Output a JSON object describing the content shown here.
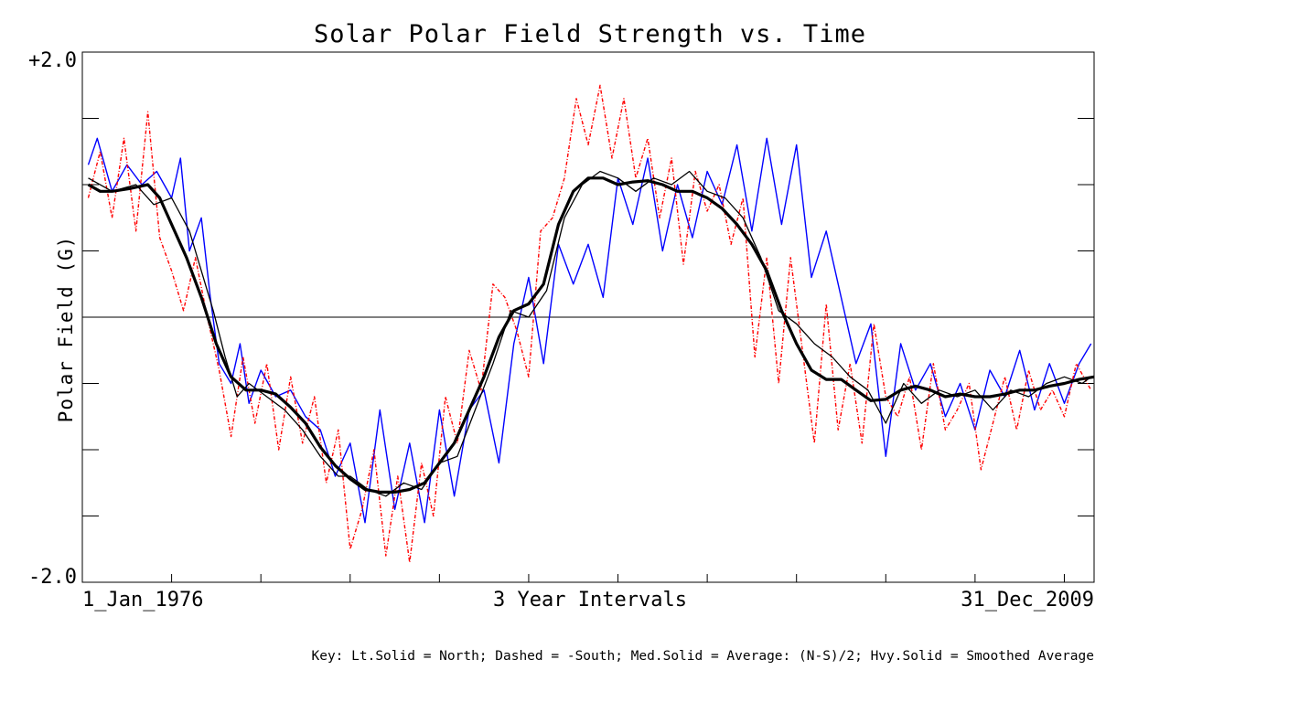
{
  "chart_data": {
    "type": "line",
    "title": "Solar Polar Field Strength vs. Time",
    "ylabel": "Polar Field (G)",
    "xlabel": "3 Year Intervals",
    "x_start_label": "1_Jan_1976",
    "x_end_label": "31_Dec_2009",
    "y_top_label": "+2.0",
    "y_bottom_label": "-2.0",
    "ylim": [
      -2.0,
      2.0
    ],
    "xlim": [
      1976.0,
      2010.0
    ],
    "x_ticks": [
      1979,
      1982,
      1985,
      1988,
      1991,
      1994,
      1997,
      2000,
      2003,
      2006,
      2009
    ],
    "y_ticks": [
      -1.5,
      -1.0,
      -0.5,
      0.0,
      0.5,
      1.0,
      1.5
    ],
    "zero_line": true,
    "key": "Key: Lt.Solid = North; Dashed = -South; Med.Solid = Average: (N-S)/2; Hvy.Solid = Smoothed Average",
    "series": [
      {
        "name": "North",
        "style": "light-solid",
        "color": "#0000ff",
        "x": [
          1976.2,
          1976.5,
          1977.0,
          1977.5,
          1978.0,
          1978.5,
          1979.0,
          1979.3,
          1979.6,
          1980.0,
          1980.3,
          1980.6,
          1981.0,
          1981.3,
          1981.6,
          1982.0,
          1982.5,
          1983.0,
          1983.5,
          1984.0,
          1984.5,
          1985.0,
          1985.5,
          1986.0,
          1986.5,
          1987.0,
          1987.5,
          1988.0,
          1988.5,
          1989.0,
          1989.5,
          1990.0,
          1990.5,
          1991.0,
          1991.5,
          1992.0,
          1992.5,
          1993.0,
          1993.5,
          1994.0,
          1994.5,
          1995.0,
          1995.5,
          1996.0,
          1996.5,
          1997.0,
          1997.5,
          1998.0,
          1998.5,
          1999.0,
          1999.5,
          2000.0,
          2000.5,
          2001.0,
          2001.5,
          2002.0,
          2002.5,
          2003.0,
          2003.5,
          2004.0,
          2004.5,
          2005.0,
          2005.5,
          2006.0,
          2006.5,
          2007.0,
          2007.5,
          2008.0,
          2008.5,
          2009.0,
          2009.5,
          2009.9
        ],
        "y": [
          1.15,
          1.35,
          0.95,
          1.15,
          1.0,
          1.1,
          0.9,
          1.2,
          0.5,
          0.75,
          0.15,
          -0.35,
          -0.5,
          -0.2,
          -0.65,
          -0.4,
          -0.6,
          -0.55,
          -0.75,
          -0.85,
          -1.2,
          -0.95,
          -1.55,
          -0.7,
          -1.45,
          -0.95,
          -1.55,
          -0.7,
          -1.35,
          -0.7,
          -0.55,
          -1.1,
          -0.2,
          0.3,
          -0.35,
          0.55,
          0.25,
          0.55,
          0.15,
          1.05,
          0.7,
          1.2,
          0.5,
          1.0,
          0.6,
          1.1,
          0.85,
          1.3,
          0.65,
          1.35,
          0.7,
          1.3,
          0.3,
          0.65,
          0.15,
          -0.35,
          -0.05,
          -1.05,
          -0.2,
          -0.55,
          -0.35,
          -0.75,
          -0.5,
          -0.85,
          -0.4,
          -0.6,
          -0.25,
          -0.7,
          -0.35,
          -0.65,
          -0.35,
          -0.2
        ]
      },
      {
        "name": "-South",
        "style": "dashed",
        "color": "#ff0000",
        "x": [
          1976.2,
          1976.6,
          1977.0,
          1977.4,
          1977.8,
          1978.2,
          1978.6,
          1979.0,
          1979.4,
          1979.8,
          1980.2,
          1980.6,
          1981.0,
          1981.4,
          1981.8,
          1982.2,
          1982.6,
          1983.0,
          1983.4,
          1983.8,
          1984.2,
          1984.6,
          1985.0,
          1985.4,
          1985.8,
          1986.2,
          1986.6,
          1987.0,
          1987.4,
          1987.8,
          1988.2,
          1988.6,
          1989.0,
          1989.4,
          1989.8,
          1990.2,
          1990.6,
          1991.0,
          1991.4,
          1991.8,
          1992.2,
          1992.6,
          1993.0,
          1993.4,
          1993.8,
          1994.2,
          1994.6,
          1995.0,
          1995.4,
          1995.8,
          1996.2,
          1996.6,
          1997.0,
          1997.4,
          1997.8,
          1998.2,
          1998.6,
          1999.0,
          1999.4,
          1999.8,
          2000.2,
          2000.6,
          2001.0,
          2001.4,
          2001.8,
          2002.2,
          2002.6,
          2003.0,
          2003.4,
          2003.8,
          2004.2,
          2004.6,
          2005.0,
          2005.4,
          2005.8,
          2006.2,
          2006.6,
          2007.0,
          2007.4,
          2007.8,
          2008.2,
          2008.6,
          2009.0,
          2009.4,
          2009.9
        ],
        "y": [
          0.9,
          1.25,
          0.75,
          1.35,
          0.65,
          1.55,
          0.6,
          0.35,
          0.05,
          0.45,
          0.0,
          -0.4,
          -0.9,
          -0.3,
          -0.8,
          -0.35,
          -1.0,
          -0.45,
          -0.95,
          -0.6,
          -1.25,
          -0.85,
          -1.75,
          -1.45,
          -1.0,
          -1.8,
          -1.2,
          -1.85,
          -1.1,
          -1.5,
          -0.6,
          -0.95,
          -0.25,
          -0.55,
          0.25,
          0.15,
          -0.1,
          -0.45,
          0.65,
          0.75,
          1.05,
          1.65,
          1.3,
          1.75,
          1.2,
          1.65,
          1.05,
          1.35,
          0.75,
          1.2,
          0.4,
          1.1,
          0.8,
          1.0,
          0.55,
          0.9,
          -0.3,
          0.45,
          -0.5,
          0.45,
          -0.25,
          -0.95,
          0.1,
          -0.85,
          -0.35,
          -0.95,
          -0.05,
          -0.6,
          -0.75,
          -0.45,
          -1.0,
          -0.35,
          -0.85,
          -0.7,
          -0.5,
          -1.15,
          -0.8,
          -0.45,
          -0.85,
          -0.4,
          -0.7,
          -0.55,
          -0.75,
          -0.35,
          -0.55
        ]
      },
      {
        "name": "Average: (N-S)/2",
        "style": "medium-solid",
        "color": "#000000",
        "x": [
          1976.2,
          1977.0,
          1977.8,
          1978.4,
          1979.0,
          1979.6,
          1980.0,
          1980.4,
          1980.8,
          1981.2,
          1981.6,
          1982.2,
          1982.8,
          1983.4,
          1984.0,
          1984.6,
          1985.0,
          1985.6,
          1986.2,
          1986.8,
          1987.4,
          1988.0,
          1988.6,
          1989.2,
          1989.8,
          1990.4,
          1991.0,
          1991.6,
          1992.2,
          1992.8,
          1993.4,
          1994.0,
          1994.6,
          1995.2,
          1995.8,
          1996.4,
          1997.0,
          1997.6,
          1998.2,
          1998.8,
          1999.4,
          2000.0,
          2000.6,
          2001.2,
          2001.8,
          2002.4,
          2003.0,
          2003.6,
          2004.2,
          2004.8,
          2005.4,
          2006.0,
          2006.6,
          2007.2,
          2007.8,
          2008.4,
          2009.0,
          2009.6,
          2009.9
        ],
        "y": [
          1.05,
          0.95,
          1.0,
          0.85,
          0.9,
          0.65,
          0.35,
          0.05,
          -0.3,
          -0.6,
          -0.5,
          -0.6,
          -0.7,
          -0.85,
          -1.05,
          -1.2,
          -1.2,
          -1.3,
          -1.35,
          -1.25,
          -1.3,
          -1.1,
          -1.05,
          -0.7,
          -0.35,
          0.05,
          0.0,
          0.2,
          0.75,
          1.0,
          1.1,
          1.05,
          0.95,
          1.05,
          1.0,
          1.1,
          0.95,
          0.9,
          0.75,
          0.45,
          0.05,
          -0.05,
          -0.2,
          -0.3,
          -0.45,
          -0.55,
          -0.8,
          -0.5,
          -0.65,
          -0.55,
          -0.6,
          -0.55,
          -0.7,
          -0.55,
          -0.6,
          -0.5,
          -0.45,
          -0.5,
          -0.45
        ]
      },
      {
        "name": "Smoothed Average",
        "style": "heavy-solid",
        "color": "#000000",
        "x": [
          1976.2,
          1976.6,
          1977.0,
          1977.6,
          1978.2,
          1978.6,
          1979.0,
          1979.5,
          1980.0,
          1980.5,
          1981.0,
          1981.5,
          1982.0,
          1982.5,
          1983.0,
          1983.5,
          1984.0,
          1984.5,
          1985.0,
          1985.5,
          1986.0,
          1986.5,
          1987.0,
          1987.5,
          1988.0,
          1988.5,
          1989.0,
          1989.5,
          1990.0,
          1990.5,
          1991.0,
          1991.5,
          1992.0,
          1992.5,
          1993.0,
          1993.5,
          1994.0,
          1994.5,
          1995.0,
          1995.5,
          1996.0,
          1996.5,
          1997.0,
          1997.5,
          1998.0,
          1998.5,
          1999.0,
          1999.5,
          2000.0,
          2000.5,
          2001.0,
          2001.5,
          2002.0,
          2002.5,
          2003.0,
          2003.5,
          2004.0,
          2004.5,
          2005.0,
          2005.5,
          2006.0,
          2006.5,
          2007.0,
          2007.5,
          2008.0,
          2008.5,
          2009.0,
          2009.5,
          2010.0
        ],
        "y": [
          1.0,
          0.95,
          0.95,
          0.97,
          1.0,
          0.9,
          0.7,
          0.45,
          0.15,
          -0.2,
          -0.45,
          -0.55,
          -0.55,
          -0.58,
          -0.68,
          -0.8,
          -0.98,
          -1.12,
          -1.22,
          -1.3,
          -1.32,
          -1.32,
          -1.3,
          -1.25,
          -1.1,
          -0.95,
          -0.7,
          -0.45,
          -0.15,
          0.05,
          0.1,
          0.25,
          0.7,
          0.95,
          1.05,
          1.05,
          1.0,
          1.02,
          1.03,
          1.0,
          0.95,
          0.95,
          0.9,
          0.82,
          0.7,
          0.55,
          0.35,
          0.05,
          -0.2,
          -0.4,
          -0.47,
          -0.47,
          -0.55,
          -0.63,
          -0.62,
          -0.55,
          -0.52,
          -0.55,
          -0.6,
          -0.58,
          -0.6,
          -0.6,
          -0.58,
          -0.55,
          -0.55,
          -0.52,
          -0.5,
          -0.47,
          -0.45
        ]
      }
    ]
  }
}
